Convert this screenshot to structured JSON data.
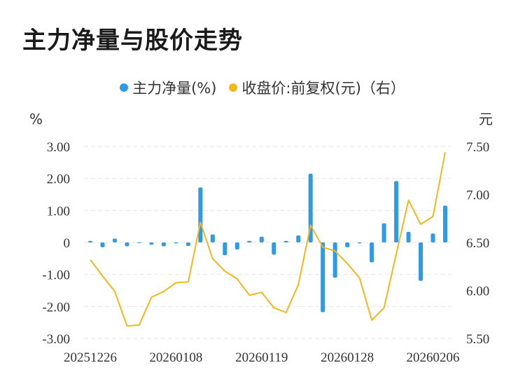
{
  "title": "主力净量与股价走势",
  "legend": {
    "series1": "主力净量(%)",
    "series2": "收盘价:前复权(元)（右）"
  },
  "colors": {
    "bar": "#2f9be6",
    "line": "#f5b61c",
    "grid": "#e6e6e6"
  },
  "chart_data": {
    "type": "bar",
    "title": "主力净量与股价走势",
    "y_left_unit": "%",
    "y_right_unit": "元",
    "y_left_ticks": [
      "3.00",
      "2.00",
      "1.00",
      "0",
      "-1.00",
      "-2.00",
      "-3.00"
    ],
    "y_right_ticks": [
      "7.50",
      "7.00",
      "6.50",
      "6.00",
      "5.50"
    ],
    "ylim_left": [
      -3,
      3
    ],
    "ylim_right": [
      5.5,
      7.5
    ],
    "x_tick_labels": [
      "20251226",
      "20260108",
      "20260119",
      "20260128",
      "20260206"
    ],
    "x_tick_indices": [
      0,
      7,
      14,
      21,
      28
    ],
    "grid": true,
    "legend_position": "top-center",
    "series": [
      {
        "name": "主力净量(%)",
        "type": "bar",
        "axis": "left",
        "values": [
          0.05,
          -0.15,
          0.12,
          -0.12,
          -0.02,
          -0.07,
          -0.12,
          -0.03,
          -0.11,
          1.72,
          0.25,
          -0.4,
          -0.22,
          0.05,
          0.18,
          -0.38,
          0.05,
          0.22,
          2.15,
          -2.18,
          -1.1,
          -0.15,
          -0.03,
          -0.62,
          0.6,
          1.92,
          0.33,
          -1.2,
          0.28,
          1.15
        ]
      },
      {
        "name": "收盘价:前复权(元)（右）",
        "type": "line",
        "axis": "right",
        "values": [
          6.32,
          6.15,
          5.99,
          5.63,
          5.64,
          5.93,
          5.99,
          6.08,
          6.09,
          6.71,
          6.33,
          6.2,
          6.12,
          5.95,
          5.98,
          5.82,
          5.77,
          6.06,
          6.68,
          6.45,
          6.41,
          6.28,
          6.13,
          5.69,
          5.82,
          6.38,
          6.94,
          6.69,
          6.77,
          7.44
        ]
      }
    ]
  }
}
